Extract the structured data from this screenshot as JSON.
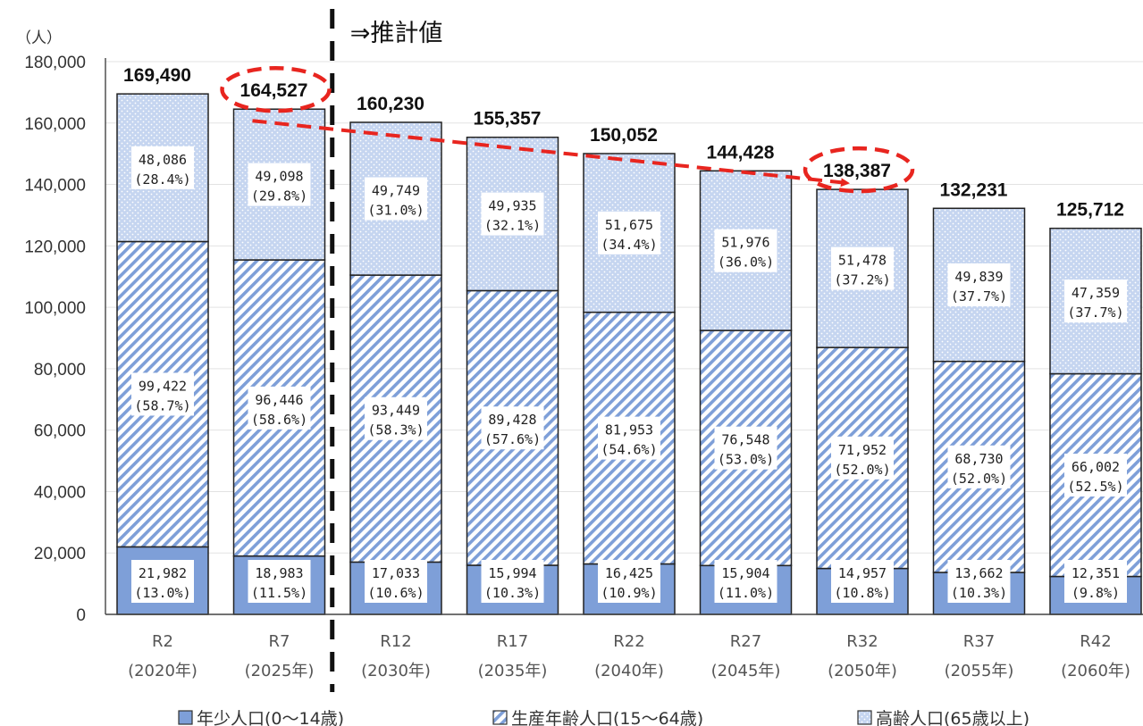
{
  "chart_data": {
    "type": "bar",
    "stacked": true,
    "unit_label": "（人）",
    "annotation": "⇒推計値",
    "categories": [
      "R2",
      "R7",
      "R12",
      "R17",
      "R22",
      "R27",
      "R32",
      "R37",
      "R42"
    ],
    "category_years": [
      "(2020年)",
      "(2025年)",
      "(2030年)",
      "(2035年)",
      "(2040年)",
      "(2045年)",
      "(2050年)",
      "(2055年)",
      "(2060年)"
    ],
    "ylim": [
      0,
      180000
    ],
    "yticks": [
      "0",
      "20,000",
      "40,000",
      "60,000",
      "80,000",
      "100,000",
      "120,000",
      "140,000",
      "160,000",
      "180,000"
    ],
    "totals": [
      169490,
      164527,
      160230,
      155357,
      150052,
      144428,
      138387,
      132231,
      125712
    ],
    "total_labels": [
      "169,490",
      "164,527",
      "160,230",
      "155,357",
      "150,052",
      "144,428",
      "138,387",
      "132,231",
      "125,712"
    ],
    "series": [
      {
        "name": "年少人口(0〜14歳)",
        "color": "#7e9fd8",
        "values": [
          21982,
          18983,
          17033,
          15994,
          16425,
          15904,
          14957,
          13662,
          12351
        ],
        "value_labels": [
          "21,982",
          "18,983",
          "17,033",
          "15,994",
          "16,425",
          "15,904",
          "14,957",
          "13,662",
          "12,351"
        ],
        "pct_labels": [
          "(13.0%)",
          "(11.5%)",
          "(10.6%)",
          "(10.3%)",
          "(10.9%)",
          "(11.0%)",
          "(10.8%)",
          "(10.3%)",
          "(9.8%)"
        ]
      },
      {
        "name": "生産年齢人口(15〜64歳)",
        "color": "#7e9fd8",
        "values": [
          99422,
          96446,
          93449,
          89428,
          81953,
          76548,
          71952,
          68730,
          66002
        ],
        "value_labels": [
          "99,422",
          "96,446",
          "93,449",
          "89,428",
          "81,953",
          "76,548",
          "71,952",
          "68,730",
          "66,002"
        ],
        "pct_labels": [
          "(58.7%)",
          "(58.6%)",
          "(58.3%)",
          "(57.6%)",
          "(54.6%)",
          "(53.0%)",
          "(52.0%)",
          "(52.0%)",
          "(52.5%)"
        ]
      },
      {
        "name": "高齢人口(65歳以上)",
        "color": "#c5d5f0",
        "values": [
          48086,
          49098,
          49749,
          49935,
          51675,
          51976,
          51478,
          49839,
          47359
        ],
        "value_labels": [
          "48,086",
          "49,098",
          "49,749",
          "49,935",
          "51,675",
          "51,976",
          "51,478",
          "49,839",
          "47,359"
        ],
        "pct_labels": [
          "(28.4%)",
          "(29.8%)",
          "(31.0%)",
          "(32.1%)",
          "(34.4%)",
          "(36.0%)",
          "(37.2%)",
          "(37.7%)",
          "(37.7%)"
        ]
      }
    ],
    "highlight_categories": [
      "R7",
      "R32"
    ],
    "colors": {
      "highlight": "#e8251f",
      "bar_edge": "#222222"
    }
  }
}
